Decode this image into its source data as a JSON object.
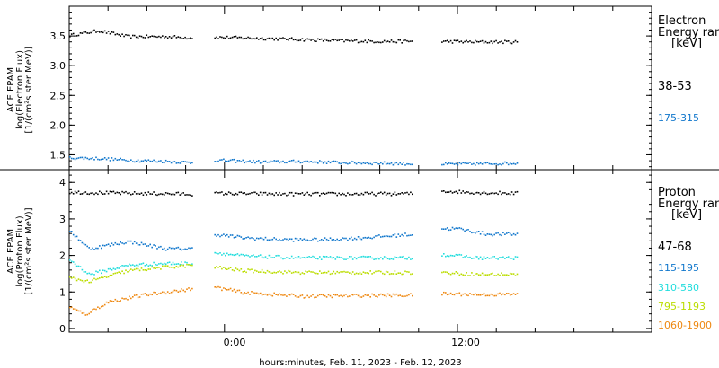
{
  "xlabel": "hours:minutes, Feb. 11, 2023 - Feb. 12, 2023",
  "x_ticks": [
    "0:00",
    "12:00"
  ],
  "chart_data": [
    {
      "type": "scatter",
      "panel": "electron",
      "ylabel_lines": [
        "ACE EPAM",
        "log(Electron Flux)",
        "[1/(cm²s ster MeV)]"
      ],
      "xlim_hours": [
        -8,
        22
      ],
      "ylim": [
        1.25,
        4.0
      ],
      "yticks": [
        "1.5",
        "2.0",
        "2.5",
        "3.0",
        "3.5"
      ],
      "legend_title": [
        "Electron",
        "Energy ran",
        "[keV]"
      ],
      "data_gaps_hours": [
        [
          -1.7,
          -0.6
        ],
        [
          9.7,
          11.1
        ]
      ],
      "coverage_hours": [
        -8,
        15.1
      ],
      "series": [
        {
          "name": "38-53",
          "color": "#000000",
          "x": [
            -8,
            -6.5,
            -5,
            -3,
            -1.7,
            -0.6,
            2,
            4,
            6,
            8,
            9.7,
            11.1,
            13,
            15
          ],
          "y": [
            3.52,
            3.6,
            3.5,
            3.5,
            3.48,
            3.49,
            3.47,
            3.45,
            3.43,
            3.42,
            3.42,
            3.42,
            3.41,
            3.41
          ]
        },
        {
          "name": "175-315",
          "color": "#1177cc",
          "x": [
            -8,
            -6.5,
            -5,
            -3,
            -1.7,
            -0.6,
            2,
            4,
            6,
            8,
            9.7,
            11.1,
            13,
            15
          ],
          "y": [
            1.46,
            1.45,
            1.42,
            1.4,
            1.38,
            1.42,
            1.39,
            1.4,
            1.38,
            1.37,
            1.36,
            1.35,
            1.36,
            1.37
          ]
        }
      ]
    },
    {
      "type": "scatter",
      "panel": "proton",
      "ylabel_lines": [
        "ACE EPAM",
        "log(Proton Flux)",
        "[1/(cm²s ster MeV)]"
      ],
      "xlim_hours": [
        -8,
        22
      ],
      "ylim": [
        -0.1,
        4.35
      ],
      "yticks": [
        "0",
        "1",
        "2",
        "3",
        "4"
      ],
      "legend_title": [
        "Proton",
        "Energy ran",
        "[keV]"
      ],
      "data_gaps_hours": [
        [
          -1.7,
          -0.6
        ],
        [
          9.7,
          11.1
        ]
      ],
      "coverage_hours": [
        -8,
        15.1
      ],
      "series": [
        {
          "name": "47-68",
          "color": "#000000",
          "x": [
            -8,
            -5,
            -1.7,
            -0.6,
            3,
            6,
            9.7,
            11.1,
            13,
            15
          ],
          "y": [
            3.75,
            3.72,
            3.7,
            3.72,
            3.7,
            3.7,
            3.71,
            3.78,
            3.74,
            3.72
          ]
        },
        {
          "name": "115-195",
          "color": "#1177cc",
          "x": [
            -8,
            -7,
            -5,
            -3,
            -1.7,
            -0.6,
            1,
            3,
            5,
            7,
            9.7,
            11.1,
            12,
            13.5,
            15
          ],
          "y": [
            2.7,
            2.2,
            2.4,
            2.2,
            2.2,
            2.6,
            2.5,
            2.45,
            2.45,
            2.5,
            2.6,
            2.75,
            2.75,
            2.6,
            2.6
          ]
        },
        {
          "name": "310-580",
          "color": "#22dddd",
          "x": [
            -8,
            -7,
            -5,
            -3,
            -1.7,
            -0.6,
            1,
            4,
            7,
            9.7,
            11.1,
            13,
            15
          ],
          "y": [
            1.9,
            1.5,
            1.75,
            1.8,
            1.8,
            2.1,
            2.0,
            1.95,
            1.95,
            1.95,
            2.05,
            1.95,
            1.95
          ]
        },
        {
          "name": "795-1193",
          "color": "#bbdd00",
          "x": [
            -8,
            -7,
            -5,
            -3,
            -1.7,
            -0.6,
            1,
            4,
            7,
            9.7,
            11.1,
            13,
            15
          ],
          "y": [
            1.4,
            1.3,
            1.6,
            1.7,
            1.75,
            1.7,
            1.6,
            1.55,
            1.55,
            1.55,
            1.55,
            1.5,
            1.5
          ]
        },
        {
          "name": "1060-1900",
          "color": "#ee8811",
          "x": [
            -8,
            -7.2,
            -6,
            -4,
            -1.7,
            -0.6,
            1,
            4,
            7,
            9.7,
            11.1,
            13,
            15
          ],
          "y": [
            0.6,
            0.4,
            0.75,
            0.95,
            1.1,
            1.15,
            1.0,
            0.9,
            0.92,
            0.93,
            0.97,
            0.95,
            0.95
          ]
        }
      ]
    }
  ]
}
